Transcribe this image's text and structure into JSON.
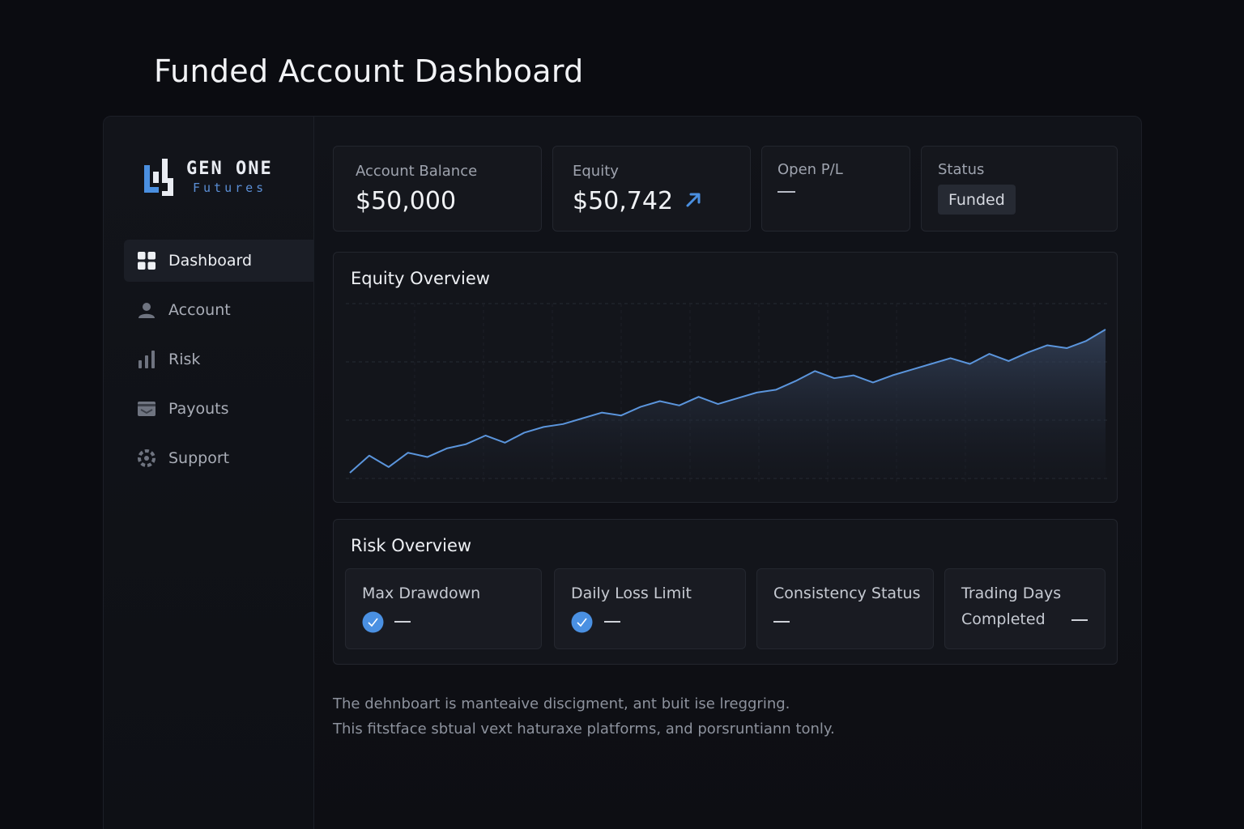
{
  "page": {
    "title": "Funded Account Dashboard"
  },
  "brand": {
    "name": "GEN ONE",
    "sub": "Futures",
    "accent": "#4a8fe0"
  },
  "sidebar": {
    "items": [
      {
        "label": "Dashboard",
        "icon": "grid-icon",
        "active": true
      },
      {
        "label": "Account",
        "icon": "user-icon",
        "active": false
      },
      {
        "label": "Risk",
        "icon": "bar-chart-icon",
        "active": false
      },
      {
        "label": "Payouts",
        "icon": "wallet-icon",
        "active": false
      },
      {
        "label": "Support",
        "icon": "lifebuoy-icon",
        "active": false
      }
    ]
  },
  "stats": {
    "balance": {
      "label": "Account Balance",
      "value": "$50,000"
    },
    "equity": {
      "label": "Equity",
      "value": "$50,742",
      "trend_icon": "arrow-up-right-icon"
    },
    "open_pl": {
      "label": "Open P/L",
      "value": "—"
    },
    "status": {
      "label": "Status",
      "value": "Funded"
    }
  },
  "equity_overview": {
    "title": "Equity Overview",
    "chart_data": {
      "type": "area",
      "title": "Equity Overview",
      "xlabel": "",
      "ylabel": "",
      "grid": true,
      "x": [
        0,
        1,
        2,
        3,
        4,
        5,
        6,
        7,
        8,
        9,
        10,
        11,
        12,
        13,
        14,
        15,
        16,
        17,
        18,
        19,
        20,
        21,
        22,
        23,
        24,
        25,
        26,
        27,
        28,
        29,
        30,
        31,
        32,
        33,
        34,
        35,
        36,
        37,
        38,
        39
      ],
      "values": [
        0.0,
        0.12,
        0.04,
        0.14,
        0.11,
        0.17,
        0.2,
        0.26,
        0.21,
        0.28,
        0.32,
        0.34,
        0.38,
        0.42,
        0.4,
        0.46,
        0.5,
        0.47,
        0.53,
        0.48,
        0.52,
        0.56,
        0.58,
        0.64,
        0.71,
        0.66,
        0.68,
        0.63,
        0.68,
        0.72,
        0.76,
        0.8,
        0.76,
        0.83,
        0.78,
        0.84,
        0.89,
        0.87,
        0.92,
        1.0
      ],
      "color": "#5b95dc"
    }
  },
  "risk_overview": {
    "title": "Risk Overview",
    "items": [
      {
        "label": "Max Drawdown",
        "value": "—",
        "checked": true
      },
      {
        "label": "Daily Loss Limit",
        "value": "—",
        "checked": true
      },
      {
        "label": "Consistency Status",
        "value": "—",
        "checked": false
      },
      {
        "label": "Trading Days Completed",
        "value": "—",
        "checked": false
      }
    ]
  },
  "footer": {
    "line1": "The dehnboart is manteaive discigment, ant buit ise lreggring.",
    "line2": "This fitstface sbtual vext haturaxe platforms, and porsruntiann tonly."
  }
}
